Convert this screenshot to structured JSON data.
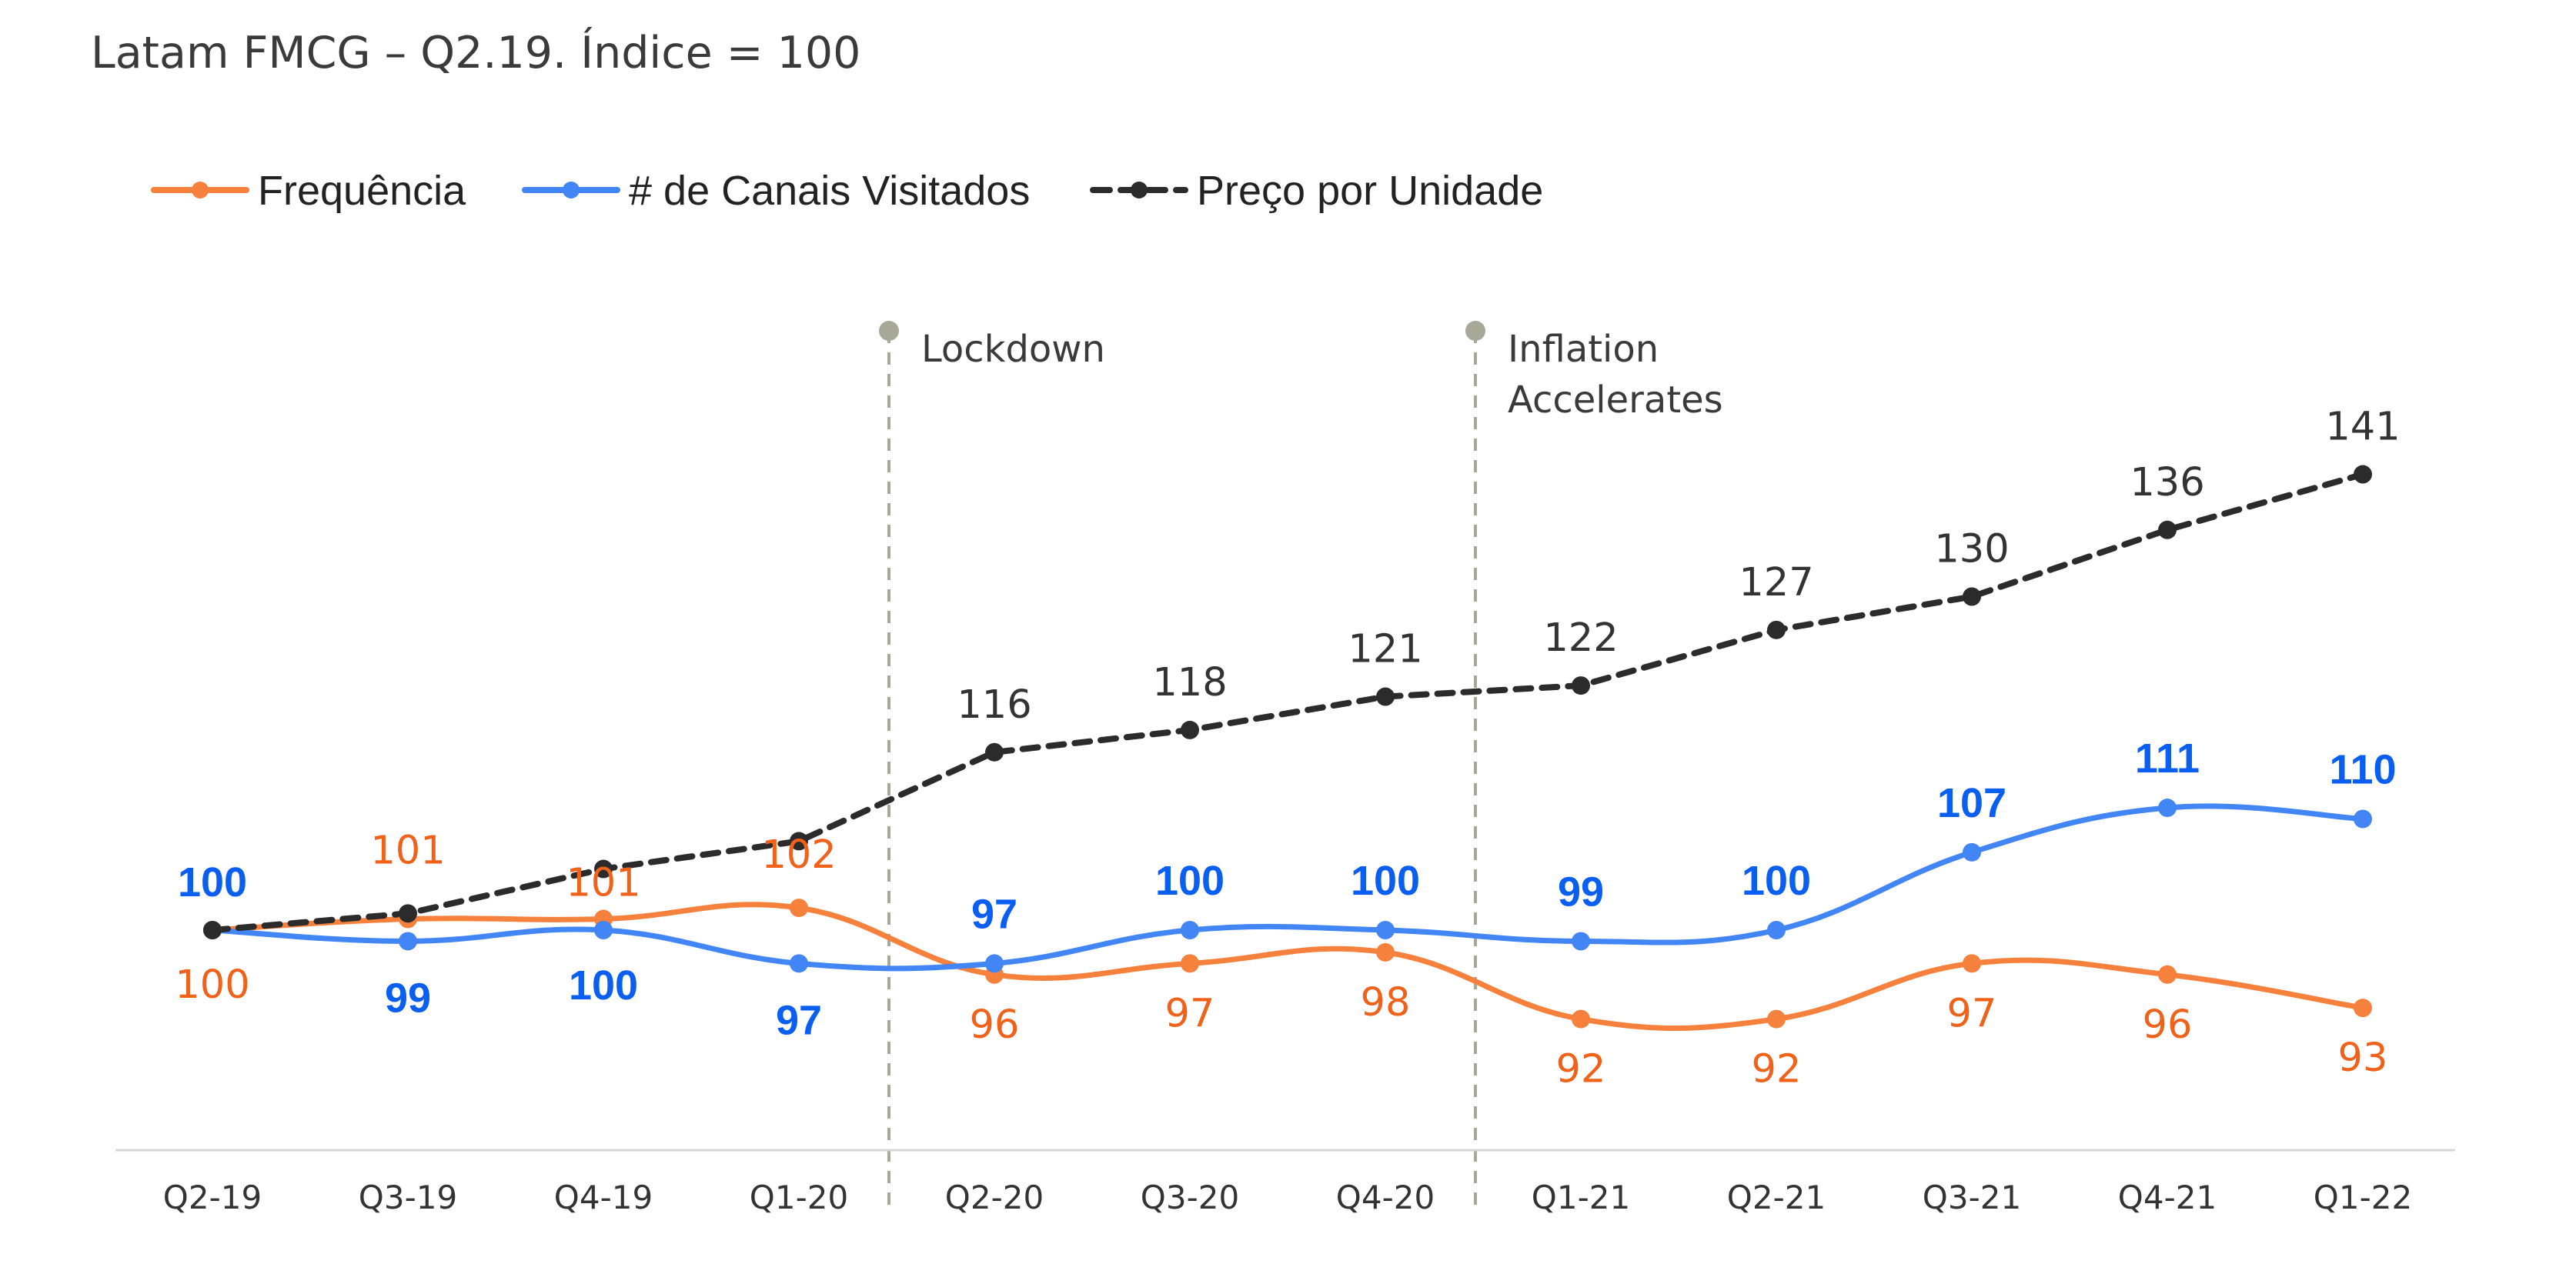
{
  "chart_data": {
    "type": "line",
    "title": "Latam FMCG – Q2.19. Índice = 100",
    "categories": [
      "Q2-19",
      "Q3-19",
      "Q4-19",
      "Q1-20",
      "Q2-20",
      "Q3-20",
      "Q4-20",
      "Q1-21",
      "Q2-21",
      "Q3-21",
      "Q4-21",
      "Q1-22"
    ],
    "ylim": [
      80,
      145
    ],
    "xlabel": "",
    "ylabel": "",
    "grid": false,
    "legend_position": "top-left",
    "series": [
      {
        "name": "Frequência",
        "color": "#f5813d",
        "label_color": "#f0621a",
        "style": "solid",
        "values": [
          100,
          101,
          101,
          102,
          96,
          97,
          98,
          92,
          92,
          97,
          96,
          93
        ]
      },
      {
        "name": "# de Canais Visitados",
        "color": "#4285f4",
        "label_color": "#0a5ef0",
        "style": "solid",
        "values": [
          100,
          99,
          100,
          97,
          97,
          100,
          100,
          99,
          100,
          107,
          111,
          110
        ]
      },
      {
        "name": "Preço por Unidade",
        "color": "#2b2b2b",
        "label_color": "#333333",
        "style": "dashed",
        "values": [
          100,
          101.5,
          105.5,
          108,
          116,
          118,
          121,
          122,
          127,
          130,
          136,
          141
        ],
        "labels": [
          "",
          "",
          "",
          "",
          "116",
          "118",
          "121",
          "122",
          "127",
          "130",
          "136",
          "141"
        ]
      }
    ],
    "annotations": [
      {
        "label": "Lockdown",
        "between": [
          3,
          4
        ],
        "color": "#a8a898"
      },
      {
        "label": "Inflation Accelerates",
        "lines": [
          "Inflation",
          "Accelerates"
        ],
        "between": [
          6,
          7
        ],
        "color": "#a8a898"
      }
    ]
  }
}
